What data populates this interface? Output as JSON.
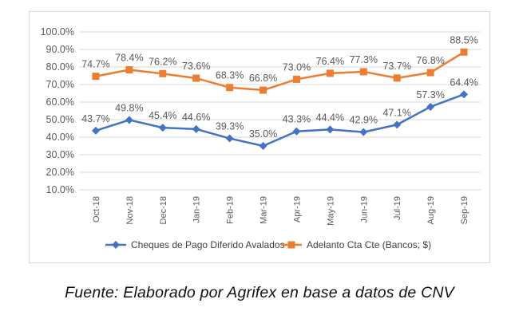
{
  "caption": "Fuente: Elaborado por Agrifex en base a datos de CNV",
  "chart_data": {
    "type": "line",
    "title": "",
    "xlabel": "",
    "ylabel": "",
    "categories": [
      "Oct-18",
      "Nov-18",
      "Dec-18",
      "Jan-19",
      "Feb-19",
      "Mar-19",
      "Apr-19",
      "May-19",
      "Jun-19",
      "Jul-19",
      "Aug-19",
      "Sep-19"
    ],
    "ylim": [
      10,
      100
    ],
    "yticks": [
      "10.0%",
      "20.0%",
      "30.0%",
      "40.0%",
      "50.0%",
      "60.0%",
      "70.0%",
      "80.0%",
      "90.0%",
      "100.0%"
    ],
    "grid": "horizontal",
    "legend_position": "bottom",
    "series": [
      {
        "name": "Cheques de Pago Diferido Avalados",
        "color": "#4472c4",
        "marker": "diamond",
        "values": [
          43.7,
          49.8,
          45.4,
          44.6,
          39.3,
          35.0,
          43.3,
          44.4,
          42.9,
          47.1,
          57.3,
          64.4
        ],
        "labels": [
          "43.7%",
          "49.8%",
          "45.4%",
          "44.6%",
          "39.3%",
          "35.0%",
          "43.3%",
          "44.4%",
          "42.9%",
          "47.1%",
          "57.3%",
          "64.4%"
        ]
      },
      {
        "name": "Adelanto Cta Cte (Bancos; $)",
        "color": "#ed7d31",
        "marker": "square",
        "values": [
          74.7,
          78.4,
          76.2,
          73.6,
          68.3,
          66.8,
          73.0,
          76.4,
          77.3,
          73.7,
          76.8,
          88.5
        ],
        "labels": [
          "74.7%",
          "78.4%",
          "76.2%",
          "73.6%",
          "68.3%",
          "66.8%",
          "73.0%",
          "76.4%",
          "77.3%",
          "73.7%",
          "76.8%",
          "88.5%"
        ]
      }
    ]
  }
}
